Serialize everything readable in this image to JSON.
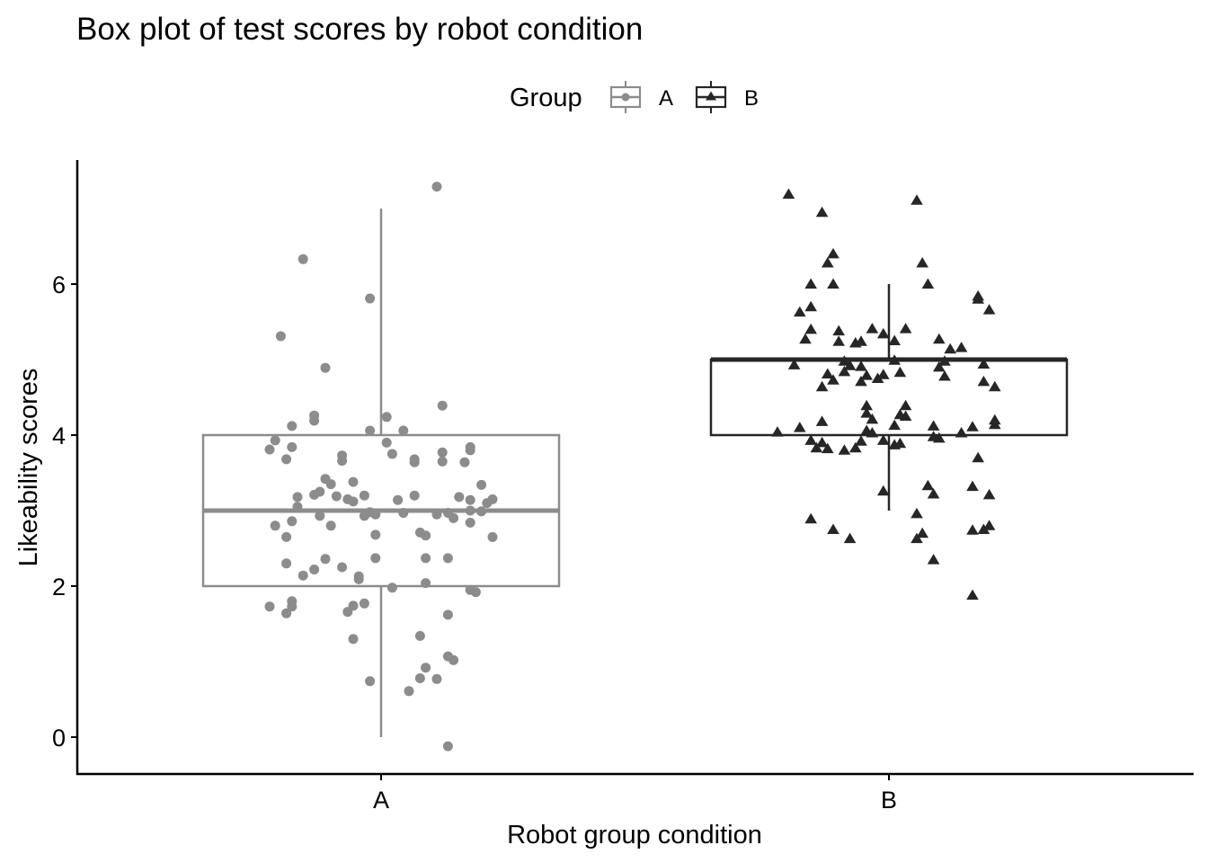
{
  "chart_data": {
    "type": "boxplot",
    "title": "Box plot of test scores by robot condition",
    "xlabel": "Robot group condition",
    "ylabel": "Likeability scores",
    "ylim": [
      -0.5,
      7.6
    ],
    "yticks": [
      0,
      2,
      4,
      6
    ],
    "categories": [
      "A",
      "B"
    ],
    "grid": false,
    "legend": {
      "title": "Group",
      "position": "top",
      "entries": [
        {
          "label": "A",
          "color": "#8c8c8c",
          "marker": "circle"
        },
        {
          "label": "B",
          "color": "#262626",
          "marker": "triangle"
        }
      ]
    },
    "boxes": [
      {
        "category": "A",
        "color": "#8c8c8c",
        "whisker_low": 0,
        "q1": 2,
        "median": 3,
        "q3": 4,
        "whisker_high": 7
      },
      {
        "category": "B",
        "color": "#262626",
        "whisker_low": 3,
        "q1": 4,
        "median": 5,
        "q3": 5,
        "whisker_high": 6
      }
    ],
    "points": {
      "A": [
        {
          "x": -0.14,
          "y": 6.33
        },
        {
          "x": 0.1,
          "y": 7.29
        },
        {
          "x": -0.02,
          "y": 5.81
        },
        {
          "x": -0.18,
          "y": 5.31
        },
        {
          "x": -0.1,
          "y": 4.89
        },
        {
          "x": 0.11,
          "y": 4.39
        },
        {
          "x": 0.01,
          "y": 4.24
        },
        {
          "x": -0.12,
          "y": 4.26
        },
        {
          "x": -0.12,
          "y": 4.19
        },
        {
          "x": -0.16,
          "y": 4.12
        },
        {
          "x": -0.02,
          "y": 4.06
        },
        {
          "x": 0.04,
          "y": 4.06
        },
        {
          "x": -0.19,
          "y": 3.93
        },
        {
          "x": 0.01,
          "y": 3.9
        },
        {
          "x": -0.16,
          "y": 3.84
        },
        {
          "x": -0.2,
          "y": 3.81
        },
        {
          "x": 0.16,
          "y": 3.84
        },
        {
          "x": 0.11,
          "y": 3.77
        },
        {
          "x": 0.16,
          "y": 3.8
        },
        {
          "x": -0.07,
          "y": 3.73
        },
        {
          "x": 0.02,
          "y": 3.75
        },
        {
          "x": -0.17,
          "y": 3.68
        },
        {
          "x": -0.07,
          "y": 3.66
        },
        {
          "x": 0.06,
          "y": 3.68
        },
        {
          "x": 0.06,
          "y": 3.64
        },
        {
          "x": 0.11,
          "y": 3.65
        },
        {
          "x": 0.15,
          "y": 3.64
        },
        {
          "x": -0.1,
          "y": 3.42
        },
        {
          "x": -0.05,
          "y": 3.38
        },
        {
          "x": -0.09,
          "y": 3.35
        },
        {
          "x": 0.18,
          "y": 3.34
        },
        {
          "x": -0.11,
          "y": 3.25
        },
        {
          "x": -0.12,
          "y": 3.21
        },
        {
          "x": -0.08,
          "y": 3.19
        },
        {
          "x": -0.05,
          "y": 3.12
        },
        {
          "x": -0.15,
          "y": 3.18
        },
        {
          "x": -0.06,
          "y": 3.15
        },
        {
          "x": -0.03,
          "y": 3.2
        },
        {
          "x": 0.03,
          "y": 3.14
        },
        {
          "x": 0.06,
          "y": 3.2
        },
        {
          "x": 0.14,
          "y": 3.18
        },
        {
          "x": 0.16,
          "y": 3.14
        },
        {
          "x": 0.2,
          "y": 3.15
        },
        {
          "x": 0.19,
          "y": 3.1
        },
        {
          "x": -0.15,
          "y": 3.05
        },
        {
          "x": -0.02,
          "y": 2.98
        },
        {
          "x": -0.03,
          "y": 2.93
        },
        {
          "x": -0.01,
          "y": 2.95
        },
        {
          "x": 0.04,
          "y": 2.97
        },
        {
          "x": 0.1,
          "y": 2.95
        },
        {
          "x": 0.12,
          "y": 2.97
        },
        {
          "x": 0.16,
          "y": 3.0
        },
        {
          "x": 0.18,
          "y": 2.99
        },
        {
          "x": -0.11,
          "y": 2.93
        },
        {
          "x": 0.13,
          "y": 2.9
        },
        {
          "x": 0.16,
          "y": 2.84
        },
        {
          "x": -0.19,
          "y": 2.8
        },
        {
          "x": -0.16,
          "y": 2.86
        },
        {
          "x": -0.09,
          "y": 2.8
        },
        {
          "x": 0.07,
          "y": 2.71
        },
        {
          "x": 0.08,
          "y": 2.67
        },
        {
          "x": -0.17,
          "y": 2.65
        },
        {
          "x": -0.01,
          "y": 2.68
        },
        {
          "x": 0.2,
          "y": 2.65
        },
        {
          "x": -0.17,
          "y": 2.3
        },
        {
          "x": -0.1,
          "y": 2.36
        },
        {
          "x": -0.12,
          "y": 2.22
        },
        {
          "x": -0.07,
          "y": 2.25
        },
        {
          "x": -0.01,
          "y": 2.37
        },
        {
          "x": 0.08,
          "y": 2.37
        },
        {
          "x": 0.12,
          "y": 2.37
        },
        {
          "x": -0.14,
          "y": 2.14
        },
        {
          "x": -0.04,
          "y": 2.13
        },
        {
          "x": -0.04,
          "y": 2.09
        },
        {
          "x": 0.02,
          "y": 1.98
        },
        {
          "x": 0.08,
          "y": 2.04
        },
        {
          "x": 0.16,
          "y": 1.95
        },
        {
          "x": 0.17,
          "y": 1.92
        },
        {
          "x": -0.2,
          "y": 1.73
        },
        {
          "x": -0.16,
          "y": 1.8
        },
        {
          "x": -0.16,
          "y": 1.73
        },
        {
          "x": -0.05,
          "y": 1.74
        },
        {
          "x": -0.03,
          "y": 1.77
        },
        {
          "x": -0.06,
          "y": 1.66
        },
        {
          "x": -0.17,
          "y": 1.64
        },
        {
          "x": 0.12,
          "y": 1.62
        },
        {
          "x": 0.07,
          "y": 1.34
        },
        {
          "x": -0.05,
          "y": 1.3
        },
        {
          "x": 0.12,
          "y": 1.07
        },
        {
          "x": 0.13,
          "y": 1.02
        },
        {
          "x": 0.08,
          "y": 0.92
        },
        {
          "x": 0.07,
          "y": 0.78
        },
        {
          "x": 0.1,
          "y": 0.77
        },
        {
          "x": -0.02,
          "y": 0.74
        },
        {
          "x": 0.05,
          "y": 0.61
        },
        {
          "x": 0.12,
          "y": -0.12
        }
      ],
      "B": [
        {
          "x": -0.18,
          "y": 7.19
        },
        {
          "x": 0.05,
          "y": 7.11
        },
        {
          "x": -0.12,
          "y": 6.95
        },
        {
          "x": -0.1,
          "y": 6.4
        },
        {
          "x": -0.11,
          "y": 6.28
        },
        {
          "x": 0.06,
          "y": 6.28
        },
        {
          "x": -0.14,
          "y": 6.0
        },
        {
          "x": -0.1,
          "y": 6.0
        },
        {
          "x": 0.07,
          "y": 6.0
        },
        {
          "x": 0.16,
          "y": 5.84
        },
        {
          "x": 0.16,
          "y": 5.8
        },
        {
          "x": -0.14,
          "y": 5.7
        },
        {
          "x": -0.16,
          "y": 5.63
        },
        {
          "x": 0.18,
          "y": 5.66
        },
        {
          "x": -0.14,
          "y": 5.4
        },
        {
          "x": -0.09,
          "y": 5.38
        },
        {
          "x": -0.03,
          "y": 5.41
        },
        {
          "x": 0.03,
          "y": 5.41
        },
        {
          "x": -0.01,
          "y": 5.34
        },
        {
          "x": -0.15,
          "y": 5.27
        },
        {
          "x": -0.09,
          "y": 5.24
        },
        {
          "x": -0.05,
          "y": 5.24
        },
        {
          "x": -0.06,
          "y": 5.22
        },
        {
          "x": 0.01,
          "y": 5.25
        },
        {
          "x": 0.09,
          "y": 5.27
        },
        {
          "x": 0.13,
          "y": 5.16
        },
        {
          "x": 0.11,
          "y": 5.14
        },
        {
          "x": -0.17,
          "y": 4.93
        },
        {
          "x": -0.08,
          "y": 4.98
        },
        {
          "x": -0.07,
          "y": 4.92
        },
        {
          "x": -0.05,
          "y": 4.91
        },
        {
          "x": 0.01,
          "y": 4.99
        },
        {
          "x": 0.1,
          "y": 4.98
        },
        {
          "x": 0.09,
          "y": 4.9
        },
        {
          "x": 0.17,
          "y": 4.94
        },
        {
          "x": -0.11,
          "y": 4.81
        },
        {
          "x": -0.08,
          "y": 4.84
        },
        {
          "x": -0.04,
          "y": 4.79
        },
        {
          "x": -0.01,
          "y": 4.8
        },
        {
          "x": 0.02,
          "y": 4.83
        },
        {
          "x": 0.1,
          "y": 4.78
        },
        {
          "x": -0.1,
          "y": 4.73
        },
        {
          "x": -0.05,
          "y": 4.71
        },
        {
          "x": -0.02,
          "y": 4.75
        },
        {
          "x": 0.17,
          "y": 4.71
        },
        {
          "x": -0.12,
          "y": 4.64
        },
        {
          "x": 0.19,
          "y": 4.64
        },
        {
          "x": -0.04,
          "y": 4.39
        },
        {
          "x": 0.03,
          "y": 4.39
        },
        {
          "x": -0.04,
          "y": 4.29
        },
        {
          "x": 0.02,
          "y": 4.27
        },
        {
          "x": 0.03,
          "y": 4.25
        },
        {
          "x": -0.03,
          "y": 4.21
        },
        {
          "x": -0.12,
          "y": 4.18
        },
        {
          "x": 0.19,
          "y": 4.2
        },
        {
          "x": -0.16,
          "y": 4.1
        },
        {
          "x": 0.01,
          "y": 4.13
        },
        {
          "x": 0.08,
          "y": 4.12
        },
        {
          "x": 0.15,
          "y": 4.11
        },
        {
          "x": 0.19,
          "y": 4.14
        },
        {
          "x": -0.2,
          "y": 4.04
        },
        {
          "x": -0.04,
          "y": 4.06
        },
        {
          "x": -0.03,
          "y": 4.03
        },
        {
          "x": 0.13,
          "y": 4.03
        },
        {
          "x": 0.08,
          "y": 3.98
        },
        {
          "x": 0.09,
          "y": 3.96
        },
        {
          "x": -0.14,
          "y": 3.93
        },
        {
          "x": -0.12,
          "y": 3.9
        },
        {
          "x": -0.05,
          "y": 3.92
        },
        {
          "x": -0.01,
          "y": 3.93
        },
        {
          "x": 0.02,
          "y": 3.89
        },
        {
          "x": -0.13,
          "y": 3.83
        },
        {
          "x": -0.11,
          "y": 3.82
        },
        {
          "x": -0.08,
          "y": 3.8
        },
        {
          "x": -0.06,
          "y": 3.83
        },
        {
          "x": 0.01,
          "y": 3.87
        },
        {
          "x": 0.16,
          "y": 3.7
        },
        {
          "x": 0.07,
          "y": 3.33
        },
        {
          "x": 0.15,
          "y": 3.32
        },
        {
          "x": -0.01,
          "y": 3.26
        },
        {
          "x": 0.08,
          "y": 3.22
        },
        {
          "x": 0.18,
          "y": 3.21
        },
        {
          "x": 0.05,
          "y": 2.96
        },
        {
          "x": -0.14,
          "y": 2.89
        },
        {
          "x": 0.18,
          "y": 2.8
        },
        {
          "x": -0.1,
          "y": 2.75
        },
        {
          "x": 0.15,
          "y": 2.74
        },
        {
          "x": 0.17,
          "y": 2.75
        },
        {
          "x": 0.06,
          "y": 2.7
        },
        {
          "x": -0.07,
          "y": 2.63
        },
        {
          "x": 0.05,
          "y": 2.63
        },
        {
          "x": 0.08,
          "y": 2.35
        },
        {
          "x": 0.15,
          "y": 1.88
        }
      ]
    }
  }
}
